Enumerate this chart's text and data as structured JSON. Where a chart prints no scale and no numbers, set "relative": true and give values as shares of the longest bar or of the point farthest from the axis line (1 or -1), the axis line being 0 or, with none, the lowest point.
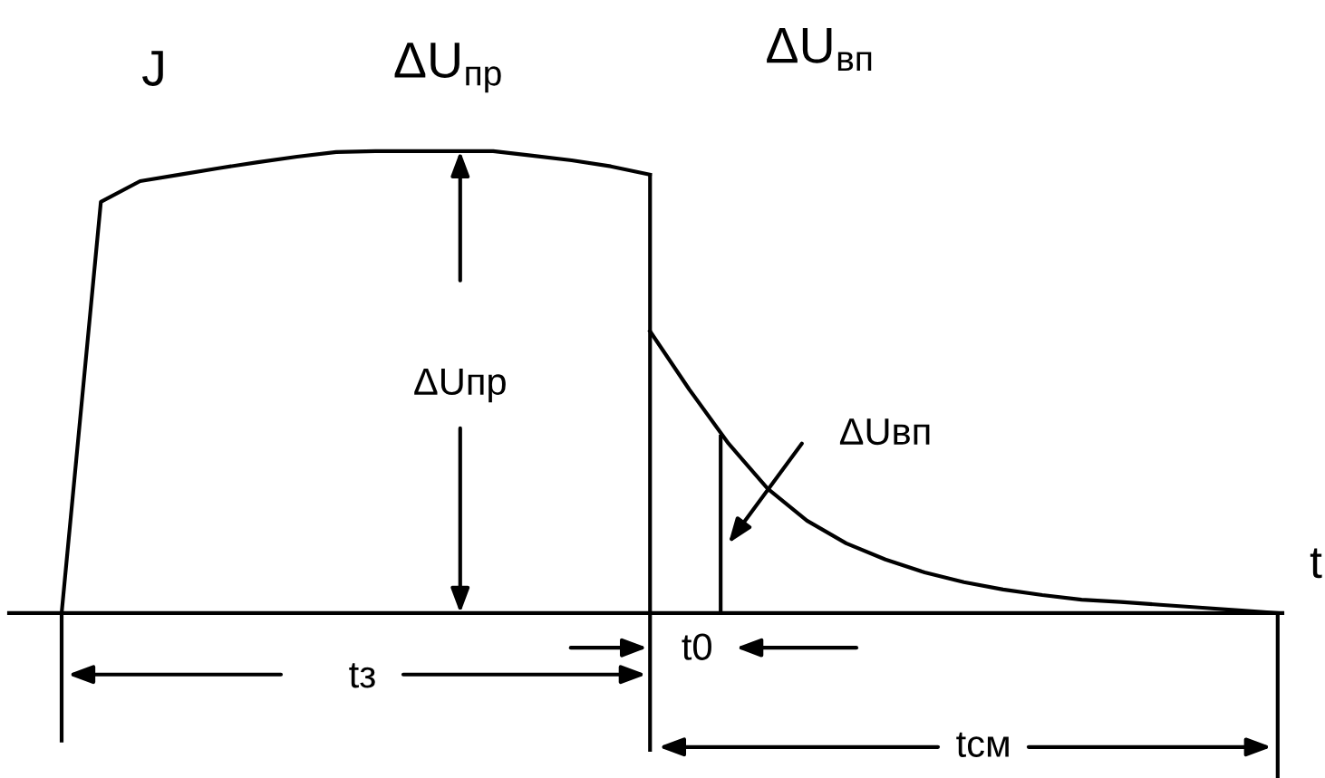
{
  "chart_data": {
    "type": "line",
    "relative": true,
    "categories": [
      null,
      null,
      null,
      null,
      null,
      null,
      null,
      null,
      null,
      null,
      null,
      null,
      null,
      null,
      null,
      null,
      null,
      null,
      null,
      null,
      null,
      null,
      null,
      null,
      null,
      null,
      null,
      null,
      null,
      null,
      null,
      null
    ],
    "series": [
      {
        "color": "#000000",
        "values": [
          0,
          0.89,
          0.935,
          0.949,
          0.963,
          0.976,
          0.988,
          0.998,
          1,
          1,
          1,
          1,
          0.99,
          0.98,
          0.967,
          0.949,
          null,
          null,
          null,
          null,
          null,
          null,
          null,
          null,
          null,
          null,
          null,
          null,
          null,
          null,
          null,
          null
        ]
      },
      {
        "color": "#000000",
        "values": [
          null,
          null,
          null,
          null,
          null,
          null,
          null,
          null,
          null,
          null,
          null,
          null,
          null,
          null,
          null,
          0.61,
          0.484,
          0.367,
          0.269,
          0.2,
          0.151,
          0.116,
          0.088,
          0.067,
          0.051,
          0.039,
          0.029,
          0.024,
          0.018,
          0.012,
          0.006,
          0
        ]
      }
    ],
    "annotations": [
      "J",
      "ΔU$_{пр}$",
      "ΔU$_{вп}$",
      "t",
      "ΔUпр",
      "ΔUвп",
      "tз",
      "t0",
      "tсм"
    ],
    "grid": false,
    "marker": "none",
    "line_style": "solid"
  }
}
